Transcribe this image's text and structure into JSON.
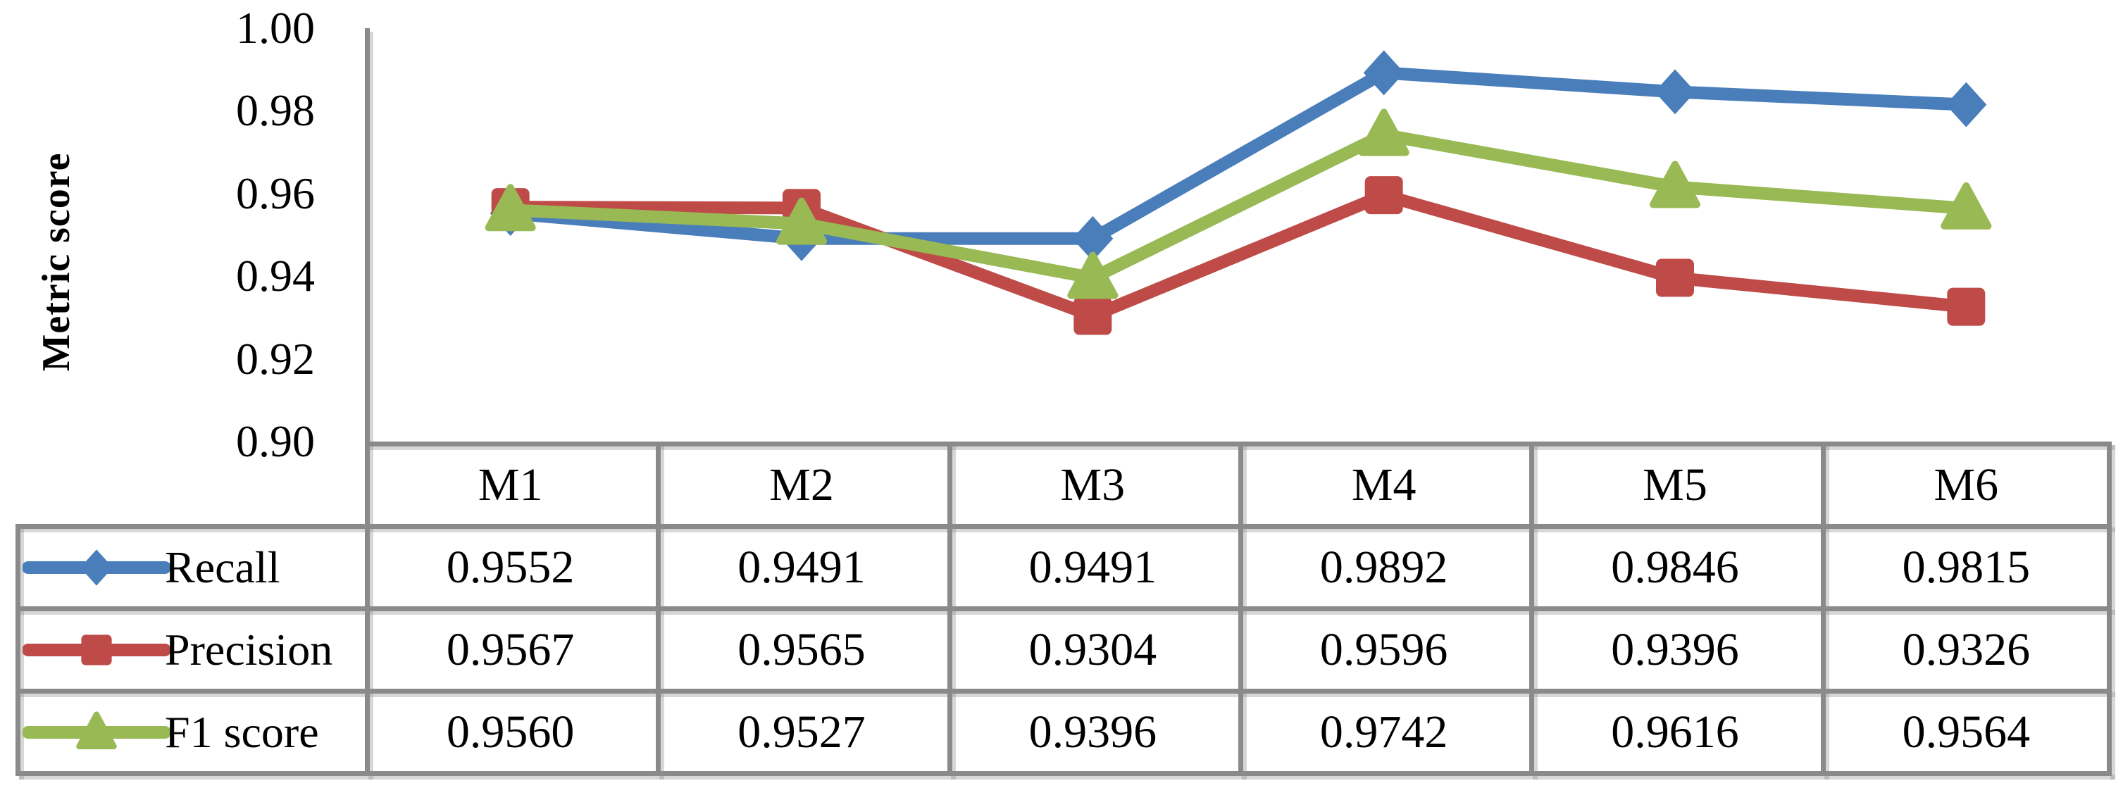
{
  "chart_data": {
    "type": "line",
    "title": "",
    "ylabel": "Metric score",
    "xlabel": "",
    "categories": [
      "M1",
      "M2",
      "M3",
      "M4",
      "M5",
      "M6"
    ],
    "series": [
      {
        "name": "Recall",
        "marker": "diamond",
        "color": "#4A7EBB",
        "values": [
          0.9552,
          0.9491,
          0.9491,
          0.9892,
          0.9846,
          0.9815
        ]
      },
      {
        "name": "Precision",
        "marker": "square",
        "color": "#BE4B48",
        "values": [
          0.9567,
          0.9565,
          0.9304,
          0.9596,
          0.9396,
          0.9326
        ]
      },
      {
        "name": "F1 score",
        "marker": "triangle",
        "color": "#98B954",
        "values": [
          0.956,
          0.9527,
          0.9396,
          0.9742,
          0.9616,
          0.9564
        ]
      }
    ],
    "ylim": [
      0.9,
      1.0
    ],
    "ytick_labels": [
      "1.00",
      "0.98",
      "0.96",
      "0.94",
      "0.92",
      "0.90"
    ],
    "value_decimals": 4,
    "grid": false,
    "legend_position": "data-table-left-column",
    "axis_color": "#8a8a8a",
    "text_color": "#000000",
    "background": "#ffffff"
  }
}
